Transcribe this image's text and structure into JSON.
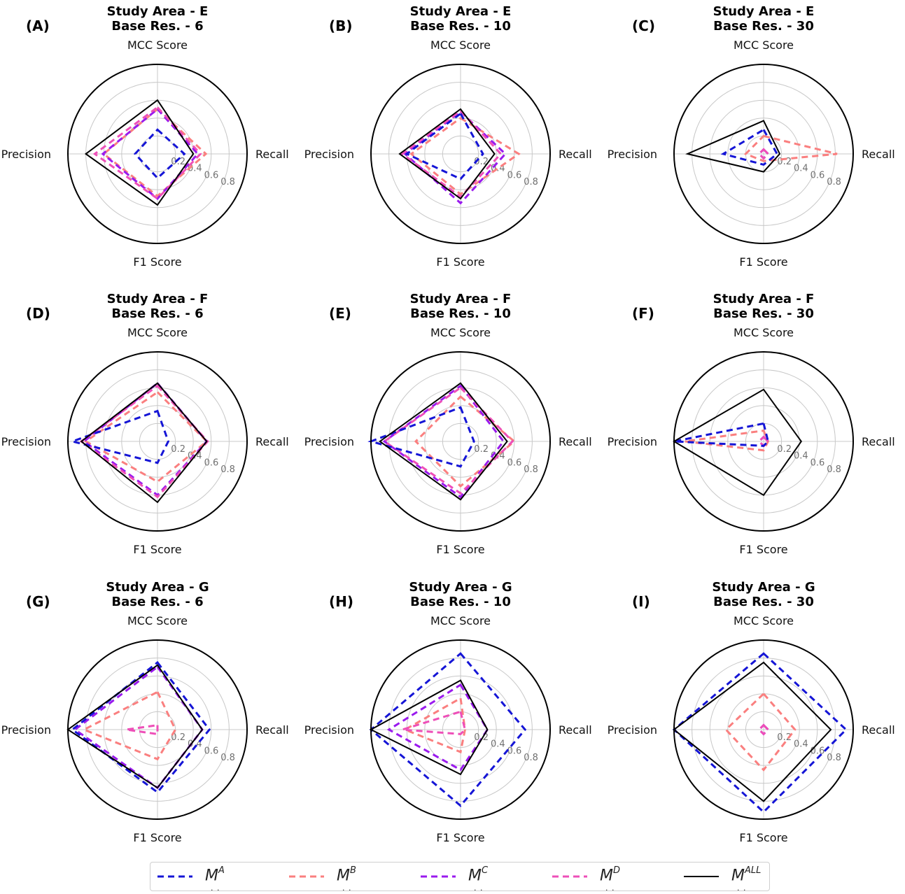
{
  "chart_data": {
    "type": "radar",
    "axes": [
      "MCC Score",
      "Recall",
      "F1 Score",
      "Precision"
    ],
    "radial_ticks": [
      "0.2",
      "0.4",
      "0.6",
      "0.8"
    ],
    "rlim": [
      0,
      1
    ],
    "grid": true,
    "legend_position": "bottom",
    "legend": [
      {
        "key": "MA",
        "base": "M",
        "sup": "A",
        "sub": ". .",
        "color": "#1515d6",
        "dashed": true
      },
      {
        "key": "MB",
        "base": "M",
        "sup": "B",
        "sub": ". .",
        "color": "#fa7f7f",
        "dashed": true
      },
      {
        "key": "MC",
        "base": "M",
        "sup": "C",
        "sub": ". .",
        "color": "#9a1aee",
        "dashed": true
      },
      {
        "key": "MD",
        "base": "M",
        "sup": "D",
        "sub": ". .",
        "color": "#ee4fb8",
        "dashed": true
      },
      {
        "key": "MALL",
        "base": "M",
        "sup": "ALL",
        "sub": ". .",
        "color": "#000000",
        "dashed": false
      }
    ],
    "panels": [
      {
        "label": "(A)",
        "title1": "Study Area - E",
        "title2": "Base Res. - 6",
        "series": {
          "MA": [
            0.27,
            0.3,
            0.27,
            0.25
          ],
          "MB": [
            0.5,
            0.54,
            0.47,
            0.6
          ],
          "MC": [
            0.5,
            0.45,
            0.5,
            0.61
          ],
          "MD": [
            0.52,
            0.48,
            0.5,
            0.7
          ],
          "MALL": [
            0.6,
            0.4,
            0.57,
            0.8
          ]
        }
      },
      {
        "label": "(B)",
        "title1": "Study Area - E",
        "title2": "Base Res. - 10",
        "series": {
          "MA": [
            0.45,
            0.25,
            0.28,
            0.6
          ],
          "MB": [
            0.4,
            0.65,
            0.45,
            0.55
          ],
          "MC": [
            0.47,
            0.5,
            0.55,
            0.62
          ],
          "MD": [
            0.48,
            0.45,
            0.48,
            0.65
          ],
          "MALL": [
            0.5,
            0.38,
            0.5,
            0.68
          ]
        }
      },
      {
        "label": "(C)",
        "title1": "Study Area - E",
        "title2": "Base Res. - 30",
        "series": {
          "MA": [
            0.27,
            0.15,
            0.12,
            0.45
          ],
          "MB": [
            0.2,
            0.82,
            0.08,
            0.2
          ],
          "MC": [
            0.05,
            0.05,
            0.05,
            0.05
          ],
          "MD": [
            0.05,
            0.05,
            0.05,
            0.05
          ],
          "MALL": [
            0.37,
            0.18,
            0.2,
            0.85
          ]
        }
      },
      {
        "label": "(D)",
        "title1": "Study Area - F",
        "title2": "Base Res. - 6",
        "series": {
          "MA": [
            0.34,
            0.12,
            0.24,
            0.95
          ],
          "MB": [
            0.55,
            0.55,
            0.45,
            0.8
          ],
          "MC": [
            0.65,
            0.55,
            0.6,
            0.82
          ],
          "MD": [
            0.62,
            0.56,
            0.62,
            0.85
          ],
          "MALL": [
            0.65,
            0.55,
            0.68,
            0.85
          ]
        }
      },
      {
        "label": "(E)",
        "title1": "Study Area - F",
        "title2": "Base Res. - 10",
        "series": {
          "MA": [
            0.38,
            0.15,
            0.28,
            1.0
          ],
          "MB": [
            0.5,
            0.6,
            0.5,
            0.5
          ],
          "MC": [
            0.62,
            0.48,
            0.62,
            0.85
          ],
          "MD": [
            0.6,
            0.58,
            0.58,
            0.85
          ],
          "MALL": [
            0.65,
            0.52,
            0.65,
            0.9
          ]
        }
      },
      {
        "label": "(F)",
        "title1": "Study Area - F",
        "title2": "Base Res. - 30",
        "series": {
          "MA": [
            0.2,
            0.05,
            0.05,
            1.0
          ],
          "MB": [
            0.12,
            0.05,
            0.1,
            0.88
          ],
          "MC": [
            0.05,
            0.05,
            0.05,
            0.05
          ],
          "MD": [
            0.05,
            0.05,
            0.05,
            0.05
          ],
          "MALL": [
            0.58,
            0.42,
            0.6,
            1.0
          ]
        }
      },
      {
        "label": "(G)",
        "title1": "Study Area - G",
        "title2": "Base Res. - 6",
        "series": {
          "MA": [
            0.75,
            0.58,
            0.7,
            0.95
          ],
          "MB": [
            0.42,
            0.2,
            0.33,
            0.82
          ],
          "MC": [
            0.7,
            0.5,
            0.65,
            0.92
          ],
          "MD": [
            0.05,
            0.0,
            0.05,
            0.35
          ],
          "MALL": [
            0.72,
            0.5,
            0.65,
            1.0
          ]
        }
      },
      {
        "label": "(H)",
        "title1": "Study Area - G",
        "title2": "Base Res. - 10",
        "series": {
          "MA": [
            0.85,
            0.72,
            0.85,
            1.0
          ],
          "MB": [
            0.35,
            0.05,
            0.25,
            0.62
          ],
          "MC": [
            0.5,
            0.3,
            0.45,
            0.8
          ],
          "MD": [
            0.2,
            0.05,
            0.05,
            0.65
          ],
          "MALL": [
            0.55,
            0.3,
            0.5,
            1.0
          ]
        }
      },
      {
        "label": "(I)",
        "title1": "Study Area - G",
        "title2": "Base Res. - 30",
        "series": {
          "MA": [
            0.85,
            0.92,
            0.92,
            1.0
          ],
          "MB": [
            0.4,
            0.35,
            0.45,
            0.42
          ],
          "MC": [
            0.05,
            0.05,
            0.05,
            0.05
          ],
          "MD": [
            0.05,
            0.05,
            0.05,
            0.05
          ],
          "MALL": [
            0.75,
            0.75,
            0.8,
            1.0
          ]
        }
      }
    ]
  }
}
